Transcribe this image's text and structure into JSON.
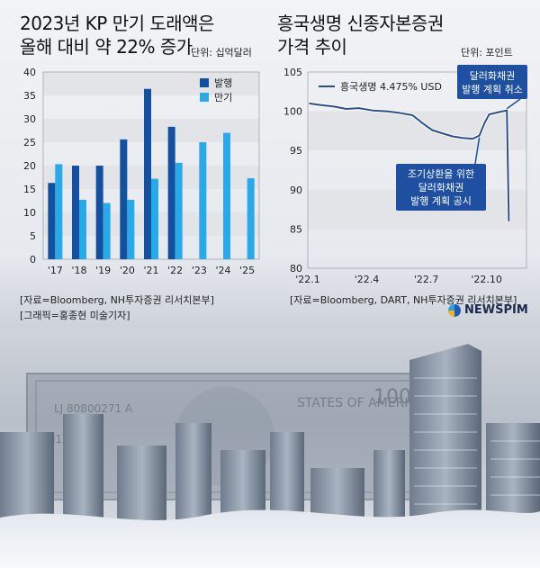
{
  "left": {
    "title_line1": "2023년 KP 만기 도래액은",
    "title_line2": "올해 대비 약 22% 증가",
    "unit": "단위: 십억달러",
    "source1": "[자료=Bloomberg, NH투자증권 리서치본부]",
    "source2": "[그래픽=홍종현 미술기자]"
  },
  "right": {
    "title_line1": "흥국생명 신종자본증권",
    "title_line2": "가격 추이",
    "unit": "단위: 포인트",
    "source": "[자료=Bloomberg, DART, NH투자증권 리서치본부]",
    "annotation_top_line1": "달러화채권",
    "annotation_top_line2": "발행 계획 취소",
    "annotation_mid_line1": "조기상환을 위한",
    "annotation_mid_line2": "달러화채권",
    "annotation_mid_line3": "발행 계획 공시"
  },
  "logo": {
    "text": "NEWSPIM"
  },
  "colors": {
    "issue": "#1450a0",
    "maturity": "#29a9e8",
    "line": "#2c4f8c",
    "band": "#e2e4e8"
  },
  "chart_data": [
    {
      "type": "bar",
      "categories": [
        "'17",
        "'18",
        "'19",
        "'20",
        "'21",
        "'22",
        "'23",
        "'24",
        "'25"
      ],
      "series": [
        {
          "name": "발행",
          "values": [
            16.3,
            20.0,
            20.0,
            25.6,
            36.4,
            28.3,
            null,
            null,
            null
          ]
        },
        {
          "name": "만기",
          "values": [
            20.3,
            12.7,
            12.0,
            12.7,
            17.2,
            20.6,
            25.0,
            27.0,
            17.3
          ]
        }
      ],
      "ylim": [
        0,
        40
      ],
      "yticks": [
        "0",
        "5",
        "10",
        "15",
        "20",
        "25",
        "30",
        "35",
        "40"
      ],
      "legend": "top-right"
    },
    {
      "type": "line",
      "x_ticks": [
        "'22.1",
        "'22.4",
        "'22.7",
        "'22.10"
      ],
      "ylim": [
        80,
        105
      ],
      "yticks": [
        "80",
        "85",
        "90",
        "95",
        "100",
        "105"
      ],
      "series": [
        {
          "name": "흥국생명 4.475% USD",
          "points": [
            [
              "2022-01-03",
              101.0
            ],
            [
              "2022-01-20",
              100.8
            ],
            [
              "2022-02-10",
              100.6
            ],
            [
              "2022-03-01",
              100.3
            ],
            [
              "2022-03-20",
              100.4
            ],
            [
              "2022-04-10",
              100.1
            ],
            [
              "2022-05-01",
              100.0
            ],
            [
              "2022-05-20",
              99.8
            ],
            [
              "2022-06-10",
              99.5
            ],
            [
              "2022-06-25",
              98.5
            ],
            [
              "2022-07-10",
              97.6
            ],
            [
              "2022-07-25",
              97.2
            ],
            [
              "2022-08-10",
              96.8
            ],
            [
              "2022-08-25",
              96.6
            ],
            [
              "2022-09-10",
              96.5
            ],
            [
              "2022-09-20",
              96.9
            ],
            [
              "2022-09-28",
              98.5
            ],
            [
              "2022-10-05",
              99.6
            ],
            [
              "2022-10-20",
              99.9
            ],
            [
              "2022-11-01",
              100.1
            ],
            [
              "2022-11-04",
              86.0
            ]
          ]
        }
      ],
      "legend": "top-left"
    }
  ]
}
